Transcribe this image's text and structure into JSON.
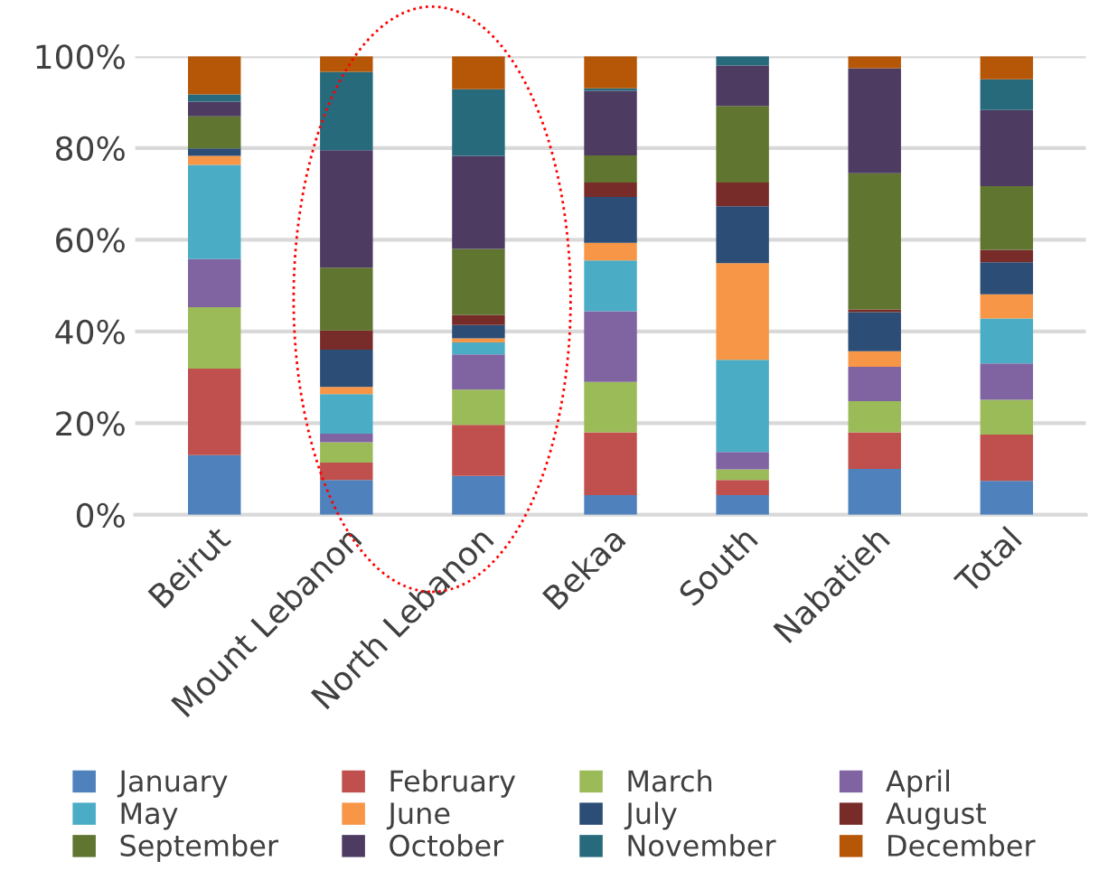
{
  "chart_data": {
    "type": "bar",
    "stacked": true,
    "categories": [
      "Beirut",
      "Mount Lebanon",
      "North Lebanon",
      "Bekaa",
      "South",
      "Nabatieh",
      "Total"
    ],
    "series": [
      {
        "name": "January",
        "color": "#4f81bd",
        "values": [
          13.0,
          7.6,
          8.5,
          4.3,
          4.3,
          10.0,
          7.4
        ]
      },
      {
        "name": "February",
        "color": "#c0504d",
        "values": [
          18.9,
          3.8,
          11.1,
          13.7,
          3.3,
          8.0,
          10.1
        ]
      },
      {
        "name": "March",
        "color": "#9bbb59",
        "values": [
          13.4,
          4.4,
          7.7,
          11.0,
          2.3,
          6.8,
          7.6
        ]
      },
      {
        "name": "April",
        "color": "#8064a2",
        "values": [
          10.5,
          1.9,
          7.7,
          15.4,
          3.8,
          7.5,
          7.9
        ]
      },
      {
        "name": "May",
        "color": "#4bacc6",
        "values": [
          20.5,
          8.6,
          2.6,
          11.1,
          20.1,
          0,
          9.8
        ]
      },
      {
        "name": "June",
        "color": "#f79646",
        "values": [
          2.0,
          1.6,
          0.9,
          3.8,
          21.1,
          3.4,
          5.3
        ]
      },
      {
        "name": "July",
        "color": "#2c4d75",
        "values": [
          1.6,
          8.1,
          2.9,
          10.0,
          12.4,
          8.5,
          7.0
        ]
      },
      {
        "name": "August",
        "color": "#772c2a",
        "values": [
          0,
          4.2,
          2.2,
          3.2,
          5.2,
          0.6,
          2.7
        ]
      },
      {
        "name": "September",
        "color": "#5f7530",
        "values": [
          7.0,
          13.7,
          14.4,
          5.9,
          16.7,
          29.7,
          13.9
        ]
      },
      {
        "name": "October",
        "color": "#4d3b62",
        "values": [
          3.2,
          25.6,
          20.3,
          14.1,
          8.8,
          22.9,
          16.6
        ]
      },
      {
        "name": "November",
        "color": "#276a7c",
        "values": [
          1.6,
          17.1,
          14.5,
          0.5,
          2.0,
          0,
          6.7
        ]
      },
      {
        "name": "December",
        "color": "#b65708",
        "values": [
          8.3,
          3.4,
          7.2,
          7.0,
          0,
          2.6,
          5.0
        ]
      }
    ],
    "ylim": [
      0,
      100
    ],
    "yticks": [
      {
        "value": 0,
        "label": "0%"
      },
      {
        "value": 20,
        "label": "20%"
      },
      {
        "value": 40,
        "label": "40%"
      },
      {
        "value": 60,
        "label": "60%"
      },
      {
        "value": 80,
        "label": "80%"
      },
      {
        "value": 100,
        "label": "100%"
      }
    ],
    "grid": "y",
    "legend": "bottom"
  }
}
